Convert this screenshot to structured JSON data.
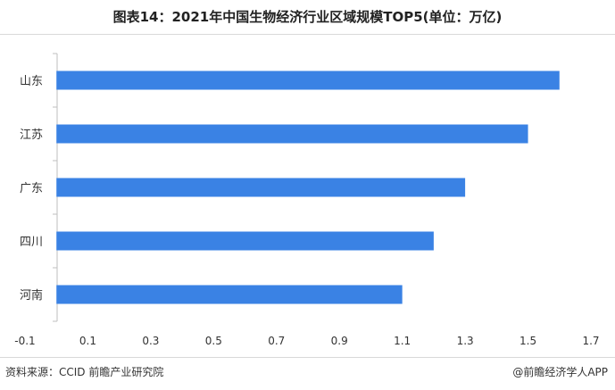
{
  "title": "图表14：2021年中国生物经济行业区域规模TOP5(单位：万亿)",
  "source": "资料来源：CCID 前瞻产业研究院",
  "credit": "@前瞻经济学人APP",
  "chart_data": {
    "type": "bar",
    "orientation": "horizontal",
    "title": "图表14：2021年中国生物经济行业区域规模TOP5(单位：万亿)",
    "categories": [
      "山东",
      "江苏",
      "广东",
      "四川",
      "河南"
    ],
    "values": [
      1.6,
      1.5,
      1.3,
      1.2,
      1.1
    ],
    "xlim": [
      -0.1,
      1.7
    ],
    "xticks": [
      "-0.1",
      "0.1",
      "0.3",
      "0.5",
      "0.7",
      "0.9",
      "1.1",
      "1.3",
      "1.5",
      "1.7"
    ],
    "bar_color": "#3a82e4",
    "grid": false,
    "legend": "none"
  }
}
